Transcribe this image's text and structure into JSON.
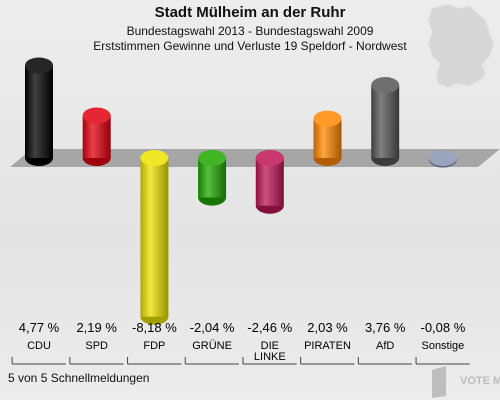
{
  "header": {
    "title": "Stadt Mülheim an der Ruhr",
    "subtitle": "Bundestagswahl 2013 - Bundestagswahl 2009",
    "subtitle2": "Erststimmen Gewinne und Verluste 19 Speldorf - Nordwest"
  },
  "footer": {
    "reports": "5 von 5 Schnellmeldungen"
  },
  "logo": {
    "text": "VOTE MANAGER"
  },
  "chart_data": {
    "type": "bar",
    "title": "Stadt Mülheim an der Ruhr",
    "categories": [
      "CDU",
      "SPD",
      "FDP",
      "GRÜNE",
      "DIE LINKE",
      "PIRATEN",
      "AfD",
      "Sonstige"
    ],
    "values": [
      4.77,
      2.19,
      -8.18,
      -2.04,
      -2.46,
      2.03,
      3.76,
      -0.08
    ],
    "value_labels": [
      "4,77 %",
      "2,19 %",
      "-8,18 %",
      "-2,04 %",
      "-2,46 %",
      "2,03 %",
      "3,76 %",
      "-0,08 %"
    ],
    "colors": [
      "#000000",
      "#e3000f",
      "#ece100",
      "#1fa800",
      "#be1556",
      "#ff8800",
      "#555555",
      "#8794b4"
    ],
    "ylim": [
      -8.5,
      5
    ],
    "grid": false,
    "legend": "none"
  }
}
